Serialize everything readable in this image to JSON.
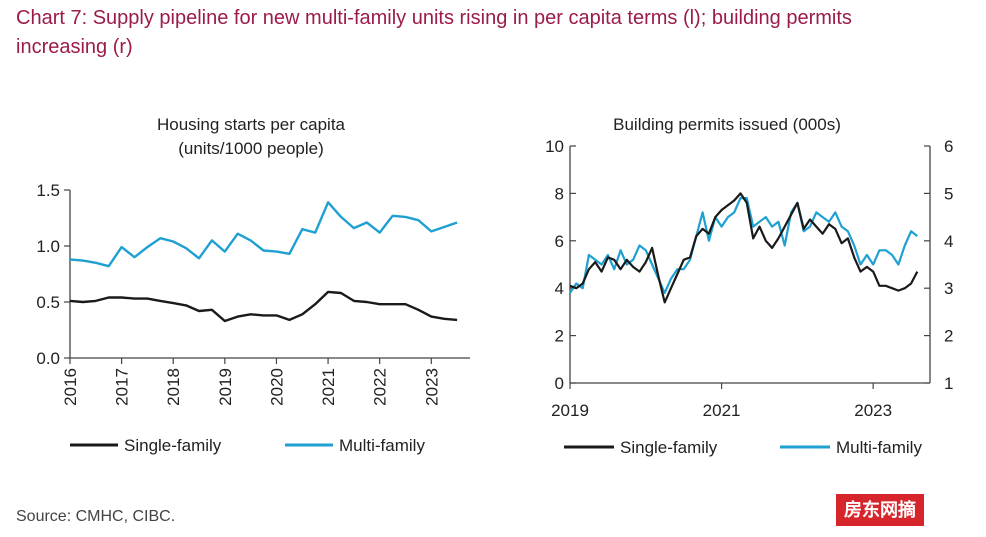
{
  "title": "Chart 7: Supply pipeline for new multi-family units rising in per capita terms (l); building permits increasing (r)",
  "source": "Source: CMHC, CIBC.",
  "stamp": "房东网摘",
  "colors": {
    "single": "#1a1a1a",
    "multi": "#1fa0d2",
    "title": "#9b1b4b",
    "axis": "#444444"
  },
  "chart_data": [
    {
      "type": "line",
      "title": "Housing starts per capita",
      "subtitle": "(units/1000 people)",
      "xlabel": "",
      "ylabel": "",
      "x_ticks": [
        "2016",
        "2017",
        "2018",
        "2019",
        "2020",
        "2021",
        "2022",
        "2023"
      ],
      "xlim": [
        2016.0,
        2023.75
      ],
      "ylim": [
        0,
        1.5
      ],
      "y_ticks": [
        "0.0",
        "0.5",
        "1.0",
        "1.5"
      ],
      "grid": false,
      "legend": "bottom",
      "series": [
        {
          "name": "Single-family",
          "x": [
            2016.0,
            2016.25,
            2016.5,
            2016.75,
            2017.0,
            2017.25,
            2017.5,
            2017.75,
            2018.0,
            2018.25,
            2018.5,
            2018.75,
            2019.0,
            2019.25,
            2019.5,
            2019.75,
            2020.0,
            2020.25,
            2020.5,
            2020.75,
            2021.0,
            2021.25,
            2021.5,
            2021.75,
            2022.0,
            2022.25,
            2022.5,
            2022.75,
            2023.0,
            2023.25,
            2023.5
          ],
          "values": [
            0.51,
            0.5,
            0.51,
            0.54,
            0.54,
            0.53,
            0.53,
            0.51,
            0.49,
            0.47,
            0.42,
            0.43,
            0.33,
            0.37,
            0.39,
            0.38,
            0.38,
            0.34,
            0.39,
            0.48,
            0.59,
            0.58,
            0.51,
            0.5,
            0.48,
            0.48,
            0.48,
            0.43,
            0.37,
            0.35,
            0.34
          ]
        },
        {
          "name": "Multi-family",
          "x": [
            2016.0,
            2016.25,
            2016.5,
            2016.75,
            2017.0,
            2017.25,
            2017.5,
            2017.75,
            2018.0,
            2018.25,
            2018.5,
            2018.75,
            2019.0,
            2019.25,
            2019.5,
            2019.75,
            2020.0,
            2020.25,
            2020.5,
            2020.75,
            2021.0,
            2021.25,
            2021.5,
            2021.75,
            2022.0,
            2022.25,
            2022.5,
            2022.75,
            2023.0,
            2023.25,
            2023.5
          ],
          "values": [
            0.88,
            0.87,
            0.85,
            0.82,
            0.99,
            0.9,
            0.99,
            1.07,
            1.04,
            0.98,
            0.89,
            1.05,
            0.95,
            1.11,
            1.05,
            0.96,
            0.95,
            0.93,
            1.15,
            1.12,
            1.39,
            1.26,
            1.16,
            1.21,
            1.12,
            1.27,
            1.26,
            1.23,
            1.13,
            1.17,
            1.21
          ]
        }
      ]
    },
    {
      "type": "line",
      "title": "Building permits issued (000s)",
      "xlabel": "",
      "ylabel": "",
      "x_ticks": [
        "2019",
        "2021",
        "2023"
      ],
      "xlim": [
        2019.0,
        2023.75
      ],
      "ylim": [
        0,
        10
      ],
      "y_ticks": [
        "0",
        "2",
        "4",
        "6",
        "8",
        "10"
      ],
      "y2lim": [
        1,
        6
      ],
      "y2_ticks": [
        "1",
        "2",
        "3",
        "4",
        "5",
        "6"
      ],
      "grid": false,
      "legend": "bottom",
      "series": [
        {
          "name": "Single-family",
          "axis": "left",
          "x": [
            2019.0,
            2019.083,
            2019.167,
            2019.25,
            2019.333,
            2019.417,
            2019.5,
            2019.583,
            2019.667,
            2019.75,
            2019.833,
            2019.917,
            2020.0,
            2020.083,
            2020.167,
            2020.25,
            2020.333,
            2020.417,
            2020.5,
            2020.583,
            2020.667,
            2020.75,
            2020.833,
            2020.917,
            2021.0,
            2021.083,
            2021.167,
            2021.25,
            2021.333,
            2021.417,
            2021.5,
            2021.583,
            2021.667,
            2021.75,
            2021.833,
            2021.917,
            2022.0,
            2022.083,
            2022.167,
            2022.25,
            2022.333,
            2022.417,
            2022.5,
            2022.583,
            2022.667,
            2022.75,
            2022.833,
            2022.917,
            2023.0,
            2023.083,
            2023.167,
            2023.25,
            2023.333,
            2023.417,
            2023.5,
            2023.583
          ],
          "values": [
            4.1,
            4.0,
            4.2,
            4.8,
            5.1,
            4.7,
            5.3,
            5.2,
            4.8,
            5.2,
            4.9,
            4.7,
            5.1,
            5.7,
            4.5,
            3.4,
            4.0,
            4.6,
            5.2,
            5.3,
            6.2,
            6.5,
            6.3,
            7.0,
            7.3,
            7.5,
            7.7,
            8.0,
            7.6,
            6.1,
            6.6,
            6.0,
            5.7,
            6.1,
            6.6,
            7.1,
            7.6,
            6.5,
            6.9,
            6.6,
            6.3,
            6.7,
            6.5,
            5.9,
            6.1,
            5.3,
            4.7,
            4.9,
            4.7,
            4.1,
            4.1,
            4.0,
            3.9,
            4.0,
            4.2,
            4.7
          ]
        },
        {
          "name": "Multi-family",
          "axis": "right",
          "x": [
            2019.0,
            2019.083,
            2019.167,
            2019.25,
            2019.333,
            2019.417,
            2019.5,
            2019.583,
            2019.667,
            2019.75,
            2019.833,
            2019.917,
            2020.0,
            2020.083,
            2020.167,
            2020.25,
            2020.333,
            2020.417,
            2020.5,
            2020.583,
            2020.667,
            2020.75,
            2020.833,
            2020.917,
            2021.0,
            2021.083,
            2021.167,
            2021.25,
            2021.333,
            2021.417,
            2021.5,
            2021.583,
            2021.667,
            2021.75,
            2021.833,
            2021.917,
            2022.0,
            2022.083,
            2022.167,
            2022.25,
            2022.333,
            2022.417,
            2022.5,
            2022.583,
            2022.667,
            2022.75,
            2022.833,
            2022.917,
            2023.0,
            2023.083,
            2023.167,
            2023.25,
            2023.333,
            2023.417,
            2023.5,
            2023.583
          ],
          "values": [
            2.9,
            3.1,
            3.0,
            3.7,
            3.6,
            3.5,
            3.7,
            3.4,
            3.8,
            3.5,
            3.6,
            3.9,
            3.8,
            3.5,
            3.2,
            2.9,
            3.2,
            3.4,
            3.4,
            3.6,
            4.1,
            4.6,
            4.0,
            4.5,
            4.3,
            4.5,
            4.6,
            4.9,
            4.9,
            4.3,
            4.4,
            4.5,
            4.3,
            4.4,
            3.9,
            4.6,
            4.8,
            4.2,
            4.3,
            4.6,
            4.5,
            4.4,
            4.6,
            4.3,
            4.2,
            3.9,
            3.5,
            3.7,
            3.5,
            3.8,
            3.8,
            3.7,
            3.5,
            3.9,
            4.2,
            4.1
          ]
        }
      ]
    }
  ]
}
